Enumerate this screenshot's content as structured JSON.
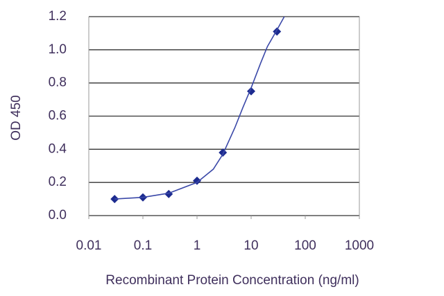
{
  "chart_data": {
    "type": "scatter",
    "x_label": "Recombinant Protein Concentration  (ng/ml)",
    "y_label": "OD 450",
    "xscale": "log",
    "xlim": [
      0.01,
      1000
    ],
    "xticks": [
      0.01,
      0.1,
      1,
      10,
      100,
      1000
    ],
    "ylim": [
      0,
      1.2
    ],
    "yticks": [
      {
        "value": 0,
        "label": "0.0"
      },
      0.2,
      0.4,
      0.6,
      0.8,
      {
        "value": 1,
        "label": "1.0"
      },
      1.2
    ],
    "grid": true,
    "series": [
      {
        "color": "#1c2b8f",
        "marker": "diamond",
        "x": [
          0.03,
          0.1,
          0.3,
          1,
          3,
          10,
          30
        ],
        "values": [
          0.1,
          0.11,
          0.13,
          0.21,
          0.38,
          0.75,
          1.11
        ]
      },
      {
        "color": "#3a48a8",
        "line": true,
        "x": [
          0.03,
          0.1,
          0.3,
          1,
          2,
          3,
          5,
          7,
          10,
          15,
          20,
          30,
          41
        ],
        "values": [
          0.1,
          0.11,
          0.135,
          0.2,
          0.28,
          0.37,
          0.53,
          0.65,
          0.77,
          0.92,
          1.02,
          1.12,
          1.2
        ]
      }
    ]
  }
}
